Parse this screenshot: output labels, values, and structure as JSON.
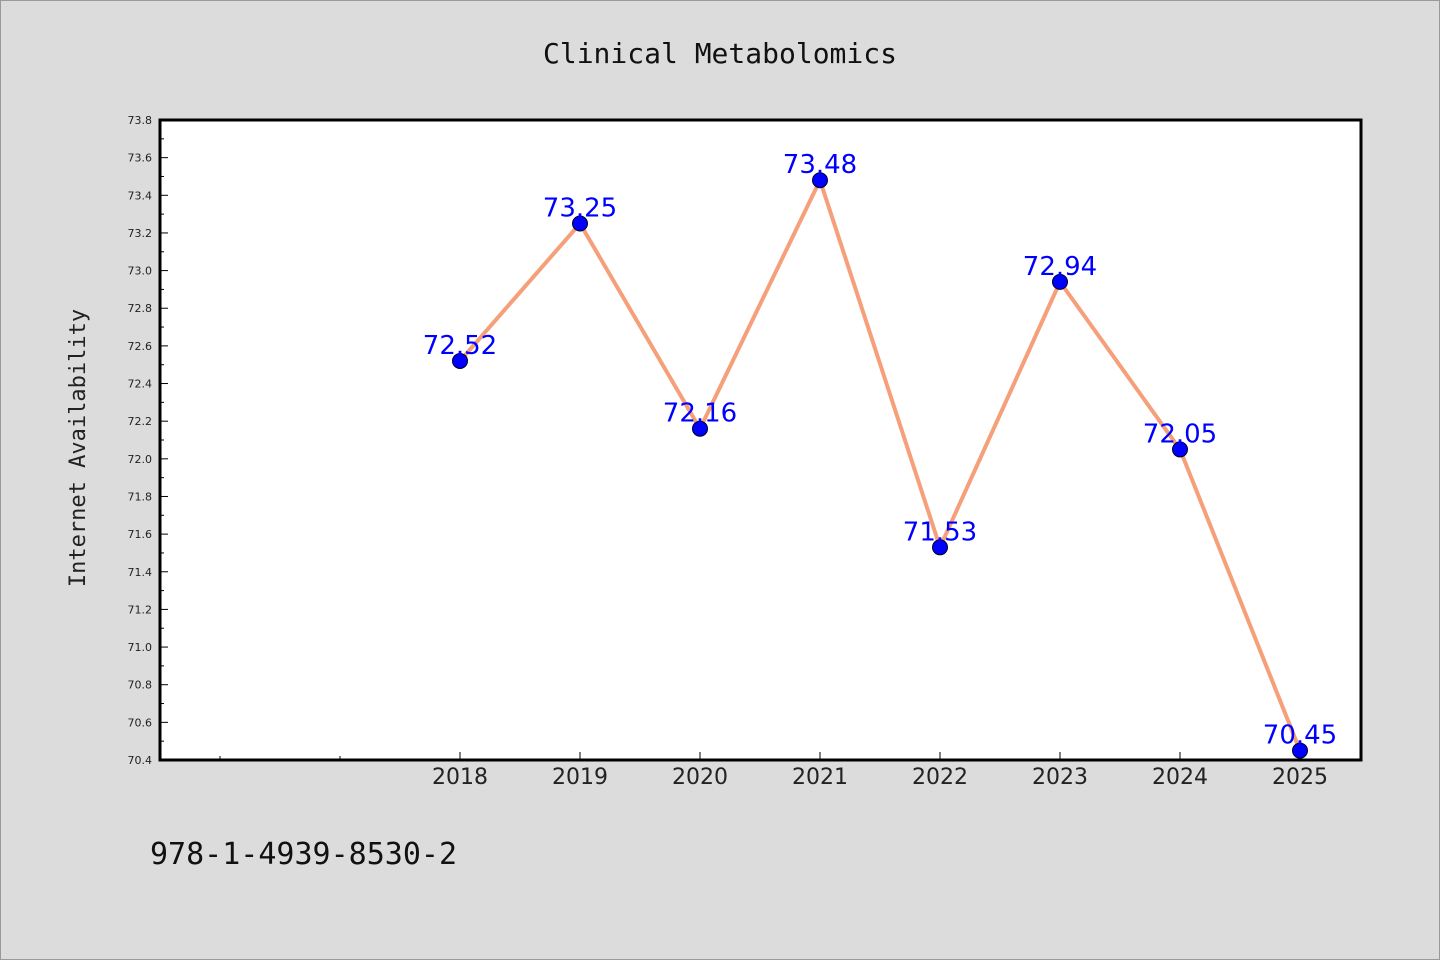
{
  "chart_data": {
    "type": "line",
    "title": "Clinical Metabolomics",
    "xlabel": "",
    "ylabel": "Internet Availability",
    "categories": [
      "2018",
      "2019",
      "2020",
      "2021",
      "2022",
      "2023",
      "2024",
      "2025"
    ],
    "values": [
      72.52,
      73.25,
      72.16,
      73.48,
      71.53,
      72.94,
      72.05,
      70.45
    ],
    "data_labels": [
      "72.52",
      "73.25",
      "72.16",
      "73.48",
      "71.53",
      "72.94",
      "72.05",
      "70.45"
    ],
    "ylim": [
      70.4,
      73.8
    ],
    "yticks": [
      "70.4",
      "70.6",
      "70.8",
      "71.0",
      "71.2",
      "71.4",
      "71.6",
      "71.8",
      "72.0",
      "72.2",
      "72.4",
      "72.6",
      "72.8",
      "73.0",
      "73.2",
      "73.4",
      "73.6",
      "73.8"
    ],
    "grid": false,
    "line_color": "#f5a07a",
    "marker_color": "#0000ff",
    "label_color": "#0000ff"
  },
  "footer": {
    "isbn": "978-1-4939-8530-2"
  },
  "colors": {
    "background": "#dcdcdc",
    "plot_background": "#ffffff"
  }
}
